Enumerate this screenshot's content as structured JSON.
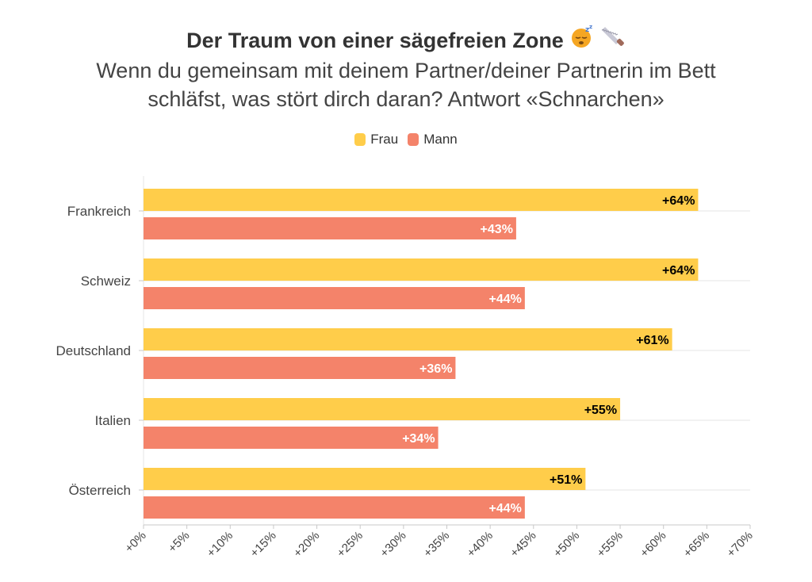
{
  "title": "Der Traum von einer sägefreien Zone",
  "title_icons": [
    "sleeping-face-icon",
    "saw-icon"
  ],
  "subtitle": "Wenn du gemeinsam mit deinem Partner/deiner Partnerin im Bett schläfst, was stört dirch daran? Antwort «Schnarchen»",
  "chart_data": {
    "type": "bar",
    "orientation": "horizontal",
    "categories": [
      "Frankreich",
      "Schweiz",
      "Deutschland",
      "Italien",
      "Österreich"
    ],
    "series": [
      {
        "name": "Frau",
        "color": "#ffcd4a",
        "label_color": "#000000",
        "values": [
          64,
          64,
          61,
          55,
          51
        ],
        "labels": [
          "+64%",
          "+64%",
          "+61%",
          "+55%",
          "+51%"
        ]
      },
      {
        "name": "Mann",
        "color": "#f4836a",
        "label_color": "#ffffff",
        "values": [
          43,
          44,
          36,
          34,
          44
        ],
        "labels": [
          "+43%",
          "+44%",
          "+36%",
          "+34%",
          "+44%"
        ]
      }
    ],
    "xlim": [
      0,
      70
    ],
    "x_ticks": [
      "+0%",
      "+5%",
      "+10%",
      "+15%",
      "+20%",
      "+25%",
      "+30%",
      "+35%",
      "+40%",
      "+45%",
      "+50%",
      "+55%",
      "+60%",
      "+65%",
      "+70%"
    ],
    "legend_position": "top-center",
    "xlabel": "",
    "ylabel": ""
  }
}
